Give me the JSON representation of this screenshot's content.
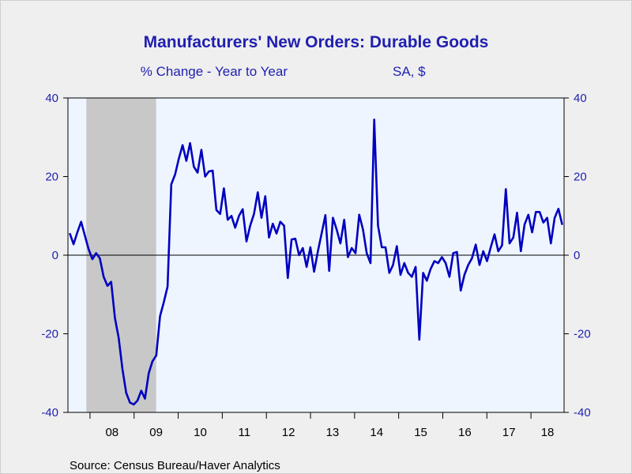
{
  "chart_data": {
    "type": "line",
    "title": "Manufacturers' New Orders: Durable Goods",
    "subtitle_left": "% Change - Year to Year",
    "subtitle_right": "SA, $",
    "source": "Source:  Census Bureau/Haver Analytics",
    "ylim": [
      -40,
      40
    ],
    "yticks": [
      40,
      20,
      0,
      -20,
      -40
    ],
    "yticks_right": [
      40,
      20,
      0,
      -20,
      -40
    ],
    "ytick_labels": [
      "40",
      "20",
      "0",
      "-20",
      "-40"
    ],
    "x_start_year": 2007.5,
    "x_end_year": 2018.75,
    "xtick_labels": [
      "08",
      "09",
      "10",
      "11",
      "12",
      "13",
      "14",
      "15",
      "16",
      "17",
      "18"
    ],
    "recession_shading": {
      "start": 2007.917,
      "end": 2009.5,
      "color": "#c8c8c8"
    },
    "plot_background": "#eef5ff",
    "line_color": "#0000c0",
    "zero_line": true,
    "series": [
      {
        "values": [
          5.5,
          2.8,
          5.8,
          8.5,
          5.0,
          1.5,
          -1.0,
          0.5,
          -0.8,
          -5.5,
          -7.8,
          -6.8,
          -16.0,
          -21.0,
          -29.0,
          -35.0,
          -37.5,
          -38.0,
          -37.0,
          -34.5,
          -36.5,
          -30.0,
          -27.0,
          -25.5,
          -15.5,
          -12.0,
          -8.0,
          18.0,
          20.5,
          24.5,
          28.0,
          24.0,
          28.5,
          22.5,
          21.0,
          26.8,
          20.0,
          21.3,
          21.5,
          11.5,
          10.5,
          17.0,
          9.0,
          10.0,
          7.0,
          10.0,
          11.7,
          3.5,
          7.5,
          10.5,
          16.0,
          9.5,
          15.0,
          4.5,
          8.0,
          5.5,
          8.5,
          7.5,
          -5.8,
          4.0,
          4.2,
          0.0,
          1.8,
          -3.0,
          2.0,
          -4.2,
          1.0,
          5.5,
          10.2,
          -4.0,
          9.5,
          6.5,
          3.0,
          9.0,
          -0.5,
          1.8,
          0.5,
          10.3,
          6.5,
          0.5,
          -2.0,
          34.5,
          7.5,
          2.0,
          2.0,
          -4.5,
          -2.5,
          2.3,
          -5.0,
          -2.0,
          -4.5,
          -5.5,
          -3.0,
          -21.5,
          -4.5,
          -6.5,
          -3.5,
          -1.5,
          -2.0,
          -0.5,
          -2.0,
          -5.5,
          0.5,
          0.8,
          -9.0,
          -5.0,
          -2.5,
          -0.8,
          2.7,
          -2.5,
          1.0,
          -1.5,
          2.0,
          5.3,
          1.0,
          2.5,
          16.8,
          3.0,
          4.5,
          10.8,
          1.0,
          7.8,
          10.3,
          5.8,
          11.0,
          11.0,
          8.3,
          9.5,
          3.0,
          9.5,
          11.8,
          7.8
        ]
      }
    ]
  }
}
